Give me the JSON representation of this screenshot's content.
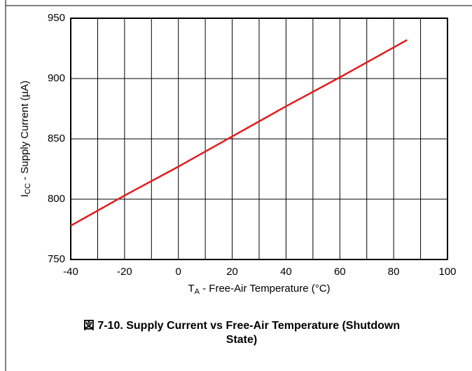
{
  "chart_data": {
    "type": "line",
    "xlabel": {
      "main": "T",
      "sub": "A",
      "rest": " - Free-Air Temperature (°C)"
    },
    "ylabel": {
      "main": "I",
      "sub": "CC",
      "rest": " - Supply Current (µA)"
    },
    "caption": "図 7-10. Supply Current vs Free-Air Temperature (Shutdown State)",
    "x": [
      -40,
      -20,
      0,
      20,
      40,
      60,
      85
    ],
    "series": [
      {
        "name": "ICC",
        "color": "#e41a1c",
        "values": [
          778,
          803,
          827,
          852,
          877,
          901,
          932
        ]
      }
    ],
    "xlim": [
      -40,
      100
    ],
    "xticks": [
      -40,
      -20,
      0,
      20,
      40,
      60,
      80,
      100
    ],
    "x_minor_ticks": [
      -30,
      -10,
      10,
      30,
      50,
      70,
      90
    ],
    "ylim": [
      750,
      950
    ],
    "yticks": [
      750,
      800,
      850,
      900,
      950
    ],
    "grid": true
  }
}
